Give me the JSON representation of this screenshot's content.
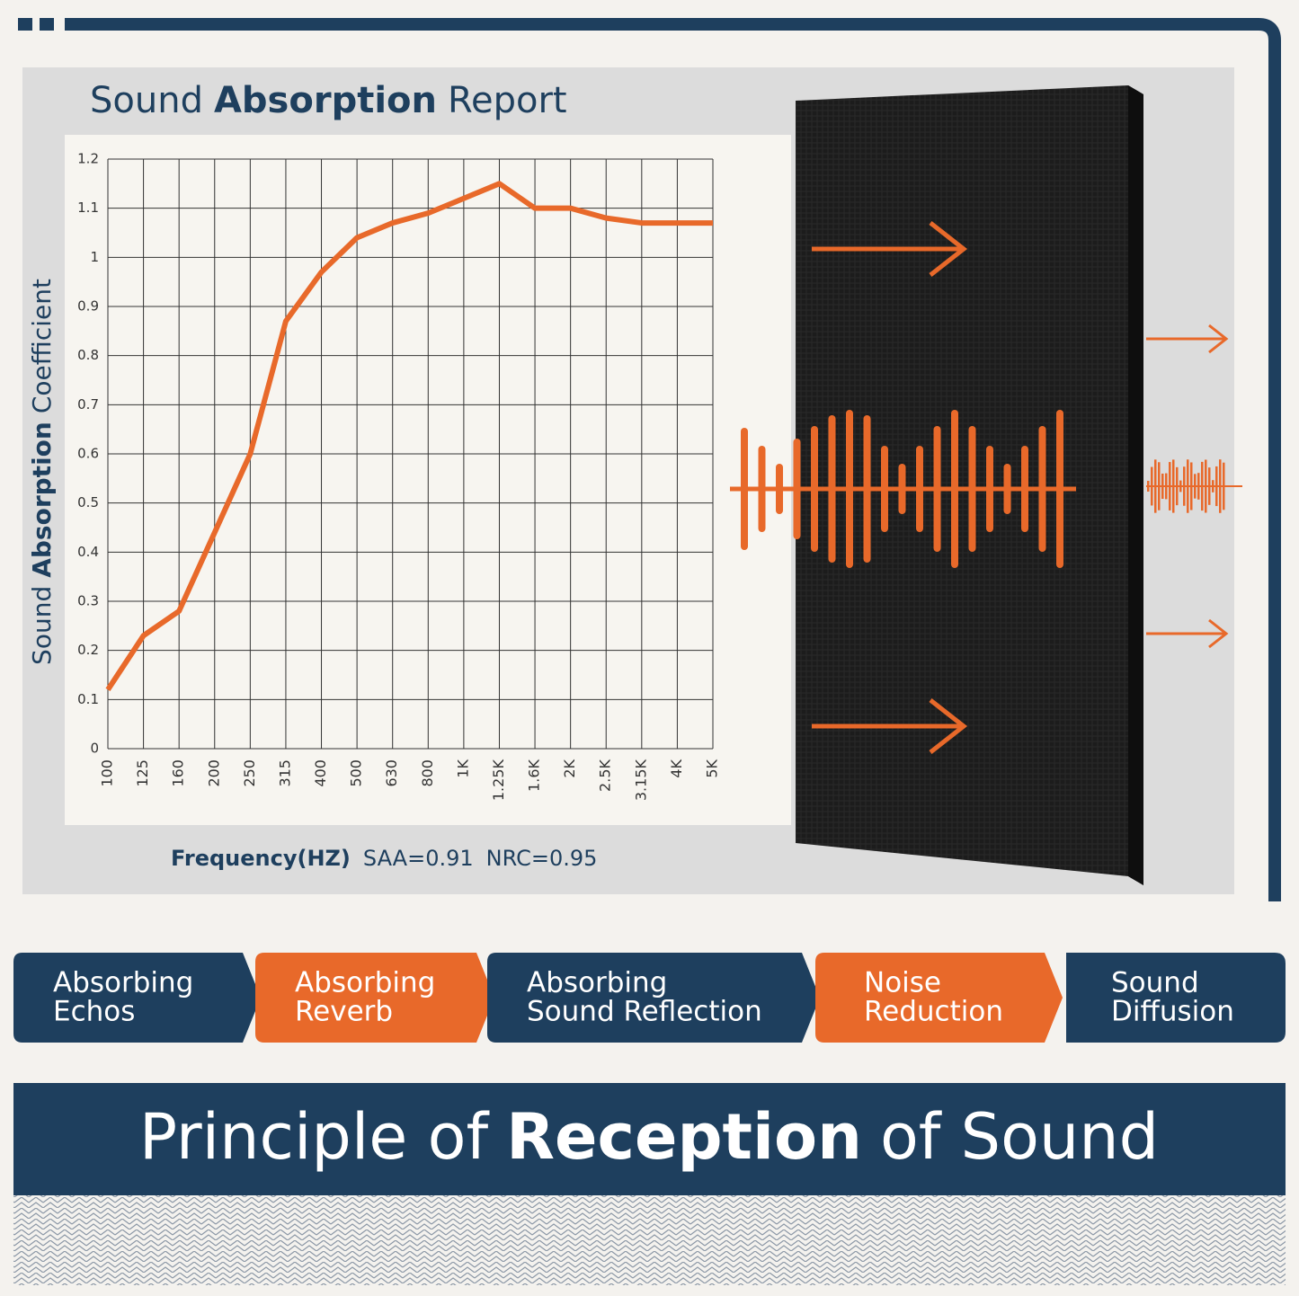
{
  "chart_data": {
    "type": "line",
    "title_parts": [
      "Sound",
      "Absorption",
      "Report"
    ],
    "ylabel_parts": [
      "Sound",
      "Absorption",
      "Coefficient"
    ],
    "xlabel": "Frequency(HZ)",
    "annotations": [
      "SAA=0.91",
      "NRC=0.95"
    ],
    "categories": [
      "100",
      "125",
      "160",
      "200",
      "250",
      "315",
      "400",
      "500",
      "630",
      "800",
      "1K",
      "1.25K",
      "1.6K",
      "2K",
      "2.5K",
      "3.15K",
      "4K",
      "5K"
    ],
    "values": [
      0.12,
      0.23,
      0.28,
      0.44,
      0.6,
      0.87,
      0.97,
      1.04,
      1.07,
      1.09,
      1.12,
      1.15,
      1.1,
      1.1,
      1.08,
      1.07,
      1.07,
      1.07
    ],
    "color": "#e8692a",
    "ylim": [
      0,
      1.2
    ],
    "yticks": [
      0,
      0.1,
      0.2,
      0.3,
      0.4,
      0.5,
      0.6,
      0.7,
      0.8,
      0.9,
      1,
      1.1,
      1.2
    ],
    "grid": true
  },
  "features": [
    {
      "lines": [
        "Absorbing",
        "Echos"
      ],
      "color": "#1e3f5e"
    },
    {
      "lines": [
        "Absorbing",
        "Reverb"
      ],
      "color": "#e8692a"
    },
    {
      "lines": [
        "Absorbing",
        "Sound Reflection"
      ],
      "color": "#1e3f5e"
    },
    {
      "lines": [
        "Noise",
        "Reduction"
      ],
      "color": "#e8692a"
    },
    {
      "lines": [
        "Sound",
        "Diffusion"
      ],
      "color": "#1e3f5e"
    }
  ],
  "banner": {
    "parts": [
      "Principle of",
      "Reception",
      "of Sound"
    ]
  }
}
